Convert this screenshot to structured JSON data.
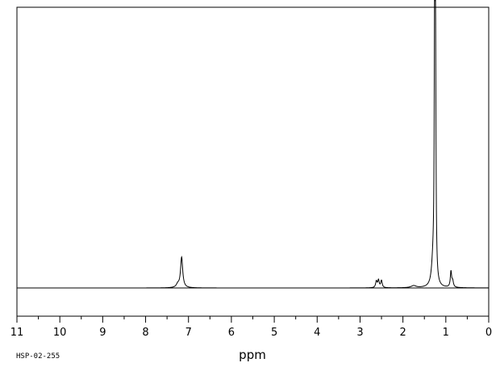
{
  "chart_data": {
    "type": "line",
    "title": "",
    "xlabel": "ppm",
    "ylabel": "",
    "x_reversed": true,
    "xlim": [
      11,
      0
    ],
    "ylim": [
      0,
      100
    ],
    "grid": false,
    "legend": "none",
    "baseline": 0,
    "x_ticks": [
      {
        "value": 11,
        "label": "11"
      },
      {
        "value": 10,
        "label": "10"
      },
      {
        "value": 9,
        "label": "9"
      },
      {
        "value": 8,
        "label": "8"
      },
      {
        "value": 7,
        "label": "7"
      },
      {
        "value": 6,
        "label": "6"
      },
      {
        "value": 5,
        "label": "5"
      },
      {
        "value": 4,
        "label": "4"
      },
      {
        "value": 3,
        "label": "3"
      },
      {
        "value": 2,
        "label": "2"
      },
      {
        "value": 1,
        "label": "1"
      },
      {
        "value": 0,
        "label": "0"
      }
    ],
    "minor_tick_step": 0.5,
    "peaks": [
      {
        "ppm": 7.16,
        "height": 11.9,
        "width": 0.03
      },
      {
        "ppm": 7.25,
        "height": 1.2,
        "width": 0.04
      },
      {
        "ppm": 2.62,
        "height": 2.5,
        "width": 0.02
      },
      {
        "ppm": 2.57,
        "height": 2.9,
        "width": 0.02
      },
      {
        "ppm": 2.5,
        "height": 2.8,
        "width": 0.02
      },
      {
        "ppm": 1.75,
        "height": 0.8,
        "width": 0.07
      },
      {
        "ppm": 1.3,
        "height": 8,
        "width": 0.04
      },
      {
        "ppm": 1.26,
        "height": 100,
        "width": 0.012
      },
      {
        "ppm": 1.24,
        "height": 84,
        "width": 0.012
      },
      {
        "ppm": 0.88,
        "height": 6.2,
        "width": 0.018
      },
      {
        "ppm": 0.84,
        "height": 2.3,
        "width": 0.02
      }
    ],
    "color": "#000000"
  },
  "footer": {
    "code": "HSP-02-255"
  }
}
